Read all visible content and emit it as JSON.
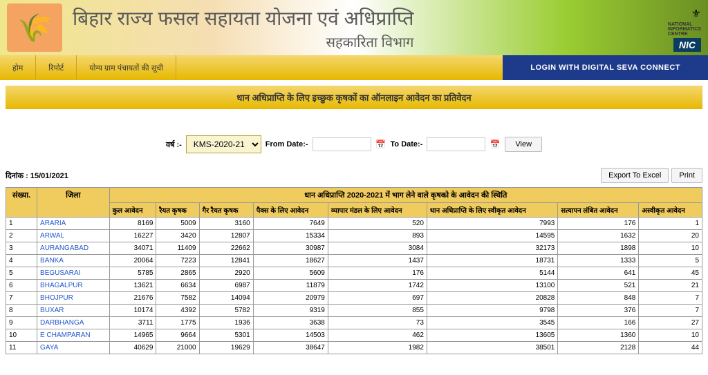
{
  "header": {
    "main_title": "बिहार राज्य फसल सहायता योजना एवं अधिप्राप्ति",
    "sub_title": "सहकारिता विभाग",
    "nic_label": "NIC",
    "nic_text1": "NATIONAL",
    "nic_text2": "INFORMATICS",
    "nic_text3": "CENTRE"
  },
  "nav": {
    "home": "होम",
    "report": "रिपोर्ट",
    "gram_list": "योग्य ग्राम पंचायतों की सूची",
    "login": "LOGIN WITH DIGITAL SEVA CONNECT"
  },
  "page_title": "धान अधिप्राप्ति के लिए इच्छुक कृषकों का ऑनलाइन आवेदन का प्रतिवेदन",
  "filter": {
    "year_label": "वर्ष :-",
    "year_value": "KMS-2020-21",
    "from_label": "From Date:-",
    "to_label": "To Date:-",
    "view_label": "View"
  },
  "table_meta": {
    "date_label": "दिनांक : 15/01/2021",
    "export_label": "Export To Excel",
    "print_label": "Print",
    "title_row": "धान अधिप्राप्ति 2020-2021 में भाग लेने वाले कृषको के आवेदन की स्थिति"
  },
  "columns": {
    "sn": "संख्या.",
    "district": "जिला",
    "total_app": "कुल आवेदन",
    "rayat": "रैयत कृषक",
    "gair_rayat": "गैर रैयत कृषक",
    "packs_app": "पैक्स के लिए आवेदन",
    "vyapar_app": "व्यापार मंडल के लिए आवेदन",
    "dhan_accepted": "धान अधिप्राप्ति के लिए स्वीकृत आवेदन",
    "satyapan": "सत्यापन लंबित आवेदन",
    "rejected": "अस्वीकृत आवेदन"
  },
  "rows": [
    {
      "sn": "1",
      "district": "ARARIA",
      "total": "8169",
      "rayat": "5009",
      "gair": "3160",
      "packs": "7649",
      "vyapar": "520",
      "dhan": "7993",
      "satyapan": "176",
      "rej": "1"
    },
    {
      "sn": "2",
      "district": "ARWAL",
      "total": "16227",
      "rayat": "3420",
      "gair": "12807",
      "packs": "15334",
      "vyapar": "893",
      "dhan": "14595",
      "satyapan": "1632",
      "rej": "20"
    },
    {
      "sn": "3",
      "district": "AURANGABAD",
      "total": "34071",
      "rayat": "11409",
      "gair": "22662",
      "packs": "30987",
      "vyapar": "3084",
      "dhan": "32173",
      "satyapan": "1898",
      "rej": "10"
    },
    {
      "sn": "4",
      "district": "BANKA",
      "total": "20064",
      "rayat": "7223",
      "gair": "12841",
      "packs": "18627",
      "vyapar": "1437",
      "dhan": "18731",
      "satyapan": "1333",
      "rej": "5"
    },
    {
      "sn": "5",
      "district": "BEGUSARAI",
      "total": "5785",
      "rayat": "2865",
      "gair": "2920",
      "packs": "5609",
      "vyapar": "176",
      "dhan": "5144",
      "satyapan": "641",
      "rej": "45"
    },
    {
      "sn": "6",
      "district": "BHAGALPUR",
      "total": "13621",
      "rayat": "6634",
      "gair": "6987",
      "packs": "11879",
      "vyapar": "1742",
      "dhan": "13100",
      "satyapan": "521",
      "rej": "21"
    },
    {
      "sn": "7",
      "district": "BHOJPUR",
      "total": "21676",
      "rayat": "7582",
      "gair": "14094",
      "packs": "20979",
      "vyapar": "697",
      "dhan": "20828",
      "satyapan": "848",
      "rej": "7"
    },
    {
      "sn": "8",
      "district": "BUXAR",
      "total": "10174",
      "rayat": "4392",
      "gair": "5782",
      "packs": "9319",
      "vyapar": "855",
      "dhan": "9798",
      "satyapan": "376",
      "rej": "7"
    },
    {
      "sn": "9",
      "district": "DARBHANGA",
      "total": "3711",
      "rayat": "1775",
      "gair": "1936",
      "packs": "3638",
      "vyapar": "73",
      "dhan": "3545",
      "satyapan": "166",
      "rej": "27"
    },
    {
      "sn": "10",
      "district": "E CHAMPARAN",
      "total": "14965",
      "rayat": "9664",
      "gair": "5301",
      "packs": "14503",
      "vyapar": "462",
      "dhan": "13605",
      "satyapan": "1360",
      "rej": "10"
    },
    {
      "sn": "11",
      "district": "GAYA",
      "total": "40629",
      "rayat": "21000",
      "gair": "19629",
      "packs": "38647",
      "vyapar": "1982",
      "dhan": "38501",
      "satyapan": "2128",
      "rej": "44"
    }
  ]
}
